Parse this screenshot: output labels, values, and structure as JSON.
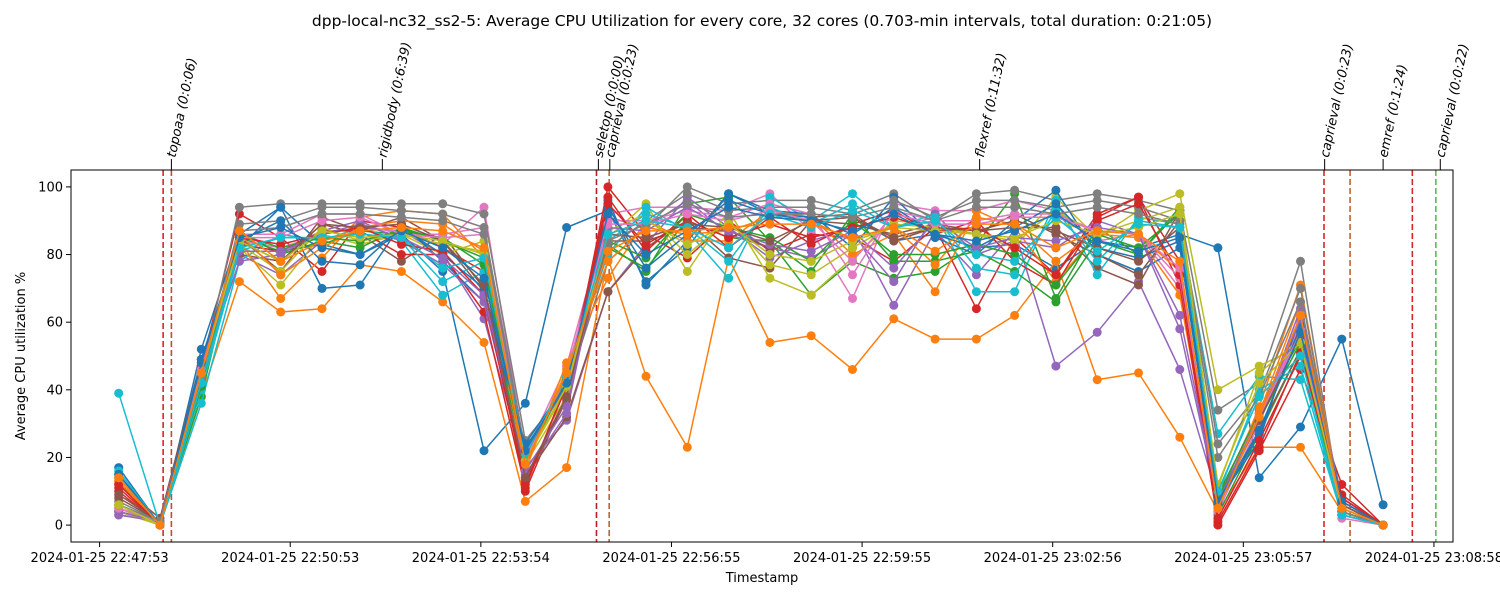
{
  "chart_data": {
    "type": "line",
    "title": "dpp-local-nc32_ss2-5: Average CPU Utilization for every core, 32 cores (0.703-min intervals, total duration: 0:21:05)",
    "xlabel": "Timestamp",
    "ylabel": "Average CPU utilization %",
    "ylim": [
      -5,
      105
    ],
    "xlim": [
      -0.45,
      21.3
    ],
    "x_units": "minutes from 2024-01-25 22:47:53",
    "x_ticks": [
      {
        "x": 0,
        "label": "2024-01-25 22:47:53"
      },
      {
        "x": 3,
        "label": "2024-01-25 22:50:53"
      },
      {
        "x": 6,
        "label": "2024-01-25 22:53:54"
      },
      {
        "x": 9,
        "label": "2024-01-25 22:56:55"
      },
      {
        "x": 12,
        "label": "2024-01-25 22:59:55"
      },
      {
        "x": 15,
        "label": "2024-01-25 23:02:56"
      },
      {
        "x": 18,
        "label": "2024-01-25 23:05:57"
      },
      {
        "x": 21,
        "label": "2024-01-25 23:08:58"
      }
    ],
    "y_ticks": [
      0,
      20,
      40,
      60,
      80,
      100
    ],
    "grid": false,
    "sample_x": [
      0.3,
      0.95,
      1.6,
      2.2,
      2.85,
      3.5,
      4.1,
      4.75,
      5.4,
      6.05,
      6.7,
      7.35,
      8.0,
      8.6,
      9.25,
      9.9,
      10.55,
      11.2,
      11.85,
      12.5,
      13.15,
      13.8,
      14.4,
      15.05,
      15.7,
      16.35,
      17.0,
      17.6,
      18.25,
      18.9,
      19.55,
      20.2
    ],
    "events": [
      {
        "label": "topoaa (0:0:06)",
        "label_x": 1.13,
        "lines": [
          {
            "x": 1.0,
            "color": "#d62728"
          },
          {
            "x": 1.13,
            "color": "#c44e2a"
          }
        ]
      },
      {
        "label": "rigidbody (0:6:39)",
        "label_x": 4.45,
        "lines": []
      },
      {
        "label": "seletop (0:0:00)",
        "label_x": 7.85,
        "lines": [
          {
            "x": 7.82,
            "color": "#b22222"
          }
        ]
      },
      {
        "label": "caprieval (0:0:23)",
        "label_x": 8.03,
        "lines": [
          {
            "x": 8.02,
            "color": "#c0632a"
          }
        ]
      },
      {
        "label": "flexref (0:11:32)",
        "label_x": 13.85,
        "lines": []
      },
      {
        "label": "caprieval (0:0:23)",
        "label_x": 19.28,
        "lines": [
          {
            "x": 19.27,
            "color": "#d62728"
          },
          {
            "x": 19.68,
            "color": "#c0632a"
          }
        ]
      },
      {
        "label": "emref (0:1:24)",
        "label_x": 20.2,
        "lines": [
          {
            "x": 20.66,
            "color": "#d62728"
          }
        ]
      },
      {
        "label": "caprieval (0:0:22)",
        "label_x": 21.1,
        "lines": [
          {
            "x": 21.03,
            "color": "#5cb85c"
          }
        ]
      }
    ],
    "palette": [
      "#1f77b4",
      "#ff7f0e",
      "#2ca02c",
      "#d62728",
      "#9467bd",
      "#8c564b",
      "#e377c2",
      "#7f7f7f",
      "#bcbd22",
      "#17becf"
    ],
    "series": [
      {
        "color": "#1f77b4",
        "values": [
          17,
          0,
          52,
          86,
          94,
          83,
          80,
          86,
          75,
          22,
          36,
          88,
          93,
          72,
          82,
          98,
          92,
          90,
          91,
          84,
          86,
          82,
          83,
          76,
          84,
          82,
          86,
          82,
          14,
          29,
          55,
          6
        ]
      },
      {
        "color": "#ff7f0e",
        "values": [
          15,
          0,
          38,
          72,
          63,
          64,
          77,
          75,
          66,
          54,
          7,
          17,
          79,
          44,
          23,
          79,
          54,
          56,
          46,
          61,
          55,
          55,
          62,
          78,
          43,
          45,
          26,
          4,
          23,
          23,
          4,
          0
        ]
      },
      {
        "color": "#2ca02c",
        "values": [
          4,
          1,
          38,
          85,
          81,
          83,
          87,
          86,
          86,
          70,
          18,
          44,
          83,
          75,
          95,
          97,
          84,
          68,
          78,
          73,
          75,
          83,
          98,
          67,
          88,
          80,
          93,
          3,
          27,
          52,
          3,
          0
        ]
      },
      {
        "color": "#d62728",
        "values": [
          10,
          0,
          47,
          92,
          85,
          75,
          90,
          88,
          82,
          75,
          10,
          39,
          100,
          86,
          79,
          90,
          81,
          86,
          85,
          78,
          88,
          64,
          85,
          74,
          92,
          97,
          78,
          0,
          22,
          46,
          12,
          0
        ]
      },
      {
        "color": "#9467bd",
        "values": [
          3,
          1,
          49,
          80,
          74,
          84,
          88,
          87,
          80,
          61,
          17,
          31,
          69,
          83,
          97,
          88,
          79,
          84,
          88,
          65,
          87,
          74,
          87,
          47,
          57,
          72,
          46,
          8,
          34,
          58,
          6,
          0
        ]
      },
      {
        "color": "#8c564b",
        "values": [
          12,
          2,
          49,
          80,
          78,
          89,
          86,
          78,
          86,
          70,
          14,
          32,
          69,
          82,
          90,
          79,
          76,
          90,
          89,
          86,
          89,
          87,
          88,
          88,
          76,
          71,
          93,
          6,
          28,
          52,
          8,
          0
        ]
      },
      {
        "color": "#e377c2",
        "values": [
          3,
          1,
          47,
          84,
          82,
          86,
          89,
          86,
          83,
          94,
          21,
          47,
          92,
          94,
          94,
          93,
          98,
          87,
          67,
          95,
          93,
          93,
          96,
          93,
          84,
          86,
          70,
          4,
          30,
          60,
          2,
          0
        ]
      },
      {
        "color": "#7f7f7f",
        "values": [
          7,
          1,
          45,
          94,
          95,
          95,
          95,
          95,
          95,
          92,
          25,
          40,
          78,
          88,
          100,
          95,
          96,
          96,
          93,
          98,
          90,
          98,
          99,
          96,
          98,
          96,
          93,
          34,
          42,
          78,
          3,
          0
        ]
      },
      {
        "color": "#bcbd22",
        "values": [
          4,
          0,
          44,
          82,
          71,
          86,
          83,
          86,
          80,
          84,
          18,
          38,
          85,
          95,
          75,
          93,
          73,
          68,
          79,
          90,
          89,
          86,
          82,
          97,
          85,
          93,
          98,
          40,
          47,
          53,
          5,
          0
        ]
      },
      {
        "color": "#17becf",
        "values": [
          39,
          0,
          36,
          78,
          86,
          84,
          88,
          84,
          68,
          75,
          20,
          45,
          80,
          94,
          87,
          73,
          97,
          90,
          98,
          88,
          92,
          69,
          69,
          96,
          74,
          91,
          89,
          27,
          44,
          43,
          3,
          0
        ]
      },
      {
        "color": "#1f77b4",
        "values": [
          14,
          0,
          48,
          82,
          94,
          70,
          71,
          89,
          78,
          66,
          24,
          42,
          96,
          71,
          84,
          98,
          93,
          92,
          82,
          97,
          85,
          80,
          90,
          99,
          80,
          75,
          82,
          7,
          25,
          62,
          8,
          0
        ]
      },
      {
        "color": "#ff7f0e",
        "values": [
          13,
          0,
          42,
          84,
          67,
          79,
          91,
          93,
          92,
          79,
          16,
          48,
          73,
          90,
          84,
          84,
          93,
          91,
          80,
          86,
          69,
          93,
          88,
          72,
          86,
          85,
          68,
          5,
          35,
          71,
          5,
          0
        ]
      },
      {
        "color": "#2ca02c",
        "values": [
          5,
          1,
          40,
          87,
          80,
          84,
          82,
          88,
          84,
          79,
          19,
          43,
          82,
          76,
          90,
          85,
          84,
          75,
          92,
          78,
          78,
          81,
          75,
          66,
          84,
          80,
          94,
          9,
          33,
          55,
          4,
          0
        ]
      },
      {
        "color": "#d62728",
        "values": [
          11,
          0,
          47,
          83,
          81,
          87,
          87,
          80,
          80,
          63,
          11,
          42,
          97,
          81,
          92,
          82,
          91,
          83,
          89,
          93,
          86,
          90,
          78,
          71,
          91,
          97,
          71,
          1,
          23,
          51,
          9,
          0
        ]
      },
      {
        "color": "#9467bd",
        "values": [
          3,
          1,
          45,
          78,
          80,
          87,
          90,
          84,
          77,
          66,
          15,
          33,
          91,
          88,
          96,
          86,
          82,
          79,
          86,
          72,
          92,
          80,
          84,
          82,
          90,
          86,
          58,
          7,
          31,
          64,
          7,
          0
        ]
      },
      {
        "color": "#8c564b",
        "values": [
          9,
          1,
          46,
          85,
          75,
          91,
          87,
          91,
          84,
          69,
          13,
          37,
          84,
          84,
          88,
          87,
          82,
          91,
          92,
          84,
          88,
          86,
          92,
          86,
          80,
          74,
          90,
          6,
          32,
          57,
          6,
          0
        ]
      },
      {
        "color": "#e377c2",
        "values": [
          4,
          1,
          46,
          86,
          86,
          92,
          92,
          86,
          86,
          88,
          19,
          45,
          90,
          90,
          93,
          91,
          95,
          92,
          74,
          93,
          90,
          90,
          92,
          92,
          87,
          86,
          73,
          5,
          33,
          58,
          3,
          0
        ]
      },
      {
        "color": "#7f7f7f",
        "values": [
          6,
          1,
          43,
          89,
          90,
          94,
          94,
          93,
          92,
          88,
          22,
          41,
          82,
          90,
          98,
          93,
          94,
          94,
          92,
          96,
          91,
          96,
          96,
          94,
          96,
          94,
          90,
          24,
          39,
          70,
          4,
          0
        ]
      },
      {
        "color": "#bcbd22",
        "values": [
          5,
          0,
          45,
          83,
          75,
          88,
          84,
          86,
          83,
          81,
          19,
          40,
          87,
          92,
          80,
          90,
          77,
          74,
          82,
          89,
          88,
          86,
          84,
          93,
          86,
          90,
          94,
          11,
          45,
          55,
          5,
          0
        ]
      },
      {
        "color": "#17becf",
        "values": [
          16,
          0,
          40,
          81,
          85,
          85,
          86,
          85,
          72,
          78,
          21,
          44,
          84,
          92,
          88,
          78,
          94,
          89,
          95,
          88,
          91,
          76,
          74,
          93,
          78,
          90,
          88,
          9,
          40,
          47,
          3,
          0
        ]
      },
      {
        "color": "#1f77b4",
        "values": [
          15,
          0,
          49,
          84,
          90,
          78,
          77,
          88,
          80,
          70,
          23,
          41,
          94,
          76,
          86,
          96,
          92,
          91,
          86,
          94,
          86,
          82,
          88,
          95,
          82,
          79,
          84,
          6,
          27,
          59,
          7,
          0
        ]
      },
      {
        "color": "#ff7f0e",
        "values": [
          13,
          0,
          44,
          86,
          74,
          82,
          88,
          90,
          89,
          81,
          17,
          46,
          78,
          88,
          86,
          87,
          91,
          90,
          84,
          88,
          77,
          91,
          89,
          78,
          87,
          86,
          75,
          5,
          33,
          66,
          5,
          0
        ]
      },
      {
        "color": "#2ca02c",
        "values": [
          6,
          1,
          41,
          86,
          82,
          85,
          84,
          87,
          85,
          77,
          19,
          43,
          84,
          79,
          92,
          88,
          85,
          78,
          90,
          80,
          80,
          83,
          80,
          71,
          86,
          82,
          92,
          8,
          31,
          54,
          4,
          0
        ]
      },
      {
        "color": "#d62728",
        "values": [
          12,
          0,
          46,
          85,
          83,
          86,
          88,
          83,
          81,
          68,
          12,
          41,
          95,
          83,
          90,
          85,
          89,
          85,
          88,
          91,
          87,
          88,
          82,
          74,
          90,
          95,
          74,
          2,
          25,
          50,
          8,
          0
        ]
      },
      {
        "color": "#9467bd",
        "values": [
          4,
          1,
          46,
          81,
          81,
          86,
          89,
          85,
          79,
          68,
          16,
          35,
          88,
          87,
          94,
          87,
          83,
          81,
          87,
          76,
          90,
          82,
          85,
          84,
          88,
          86,
          62,
          7,
          32,
          61,
          6,
          0
        ]
      },
      {
        "color": "#8c564b",
        "values": [
          8,
          1,
          46,
          84,
          78,
          89,
          88,
          89,
          84,
          71,
          14,
          38,
          86,
          85,
          89,
          88,
          84,
          90,
          91,
          85,
          88,
          87,
          90,
          87,
          82,
          78,
          88,
          6,
          31,
          56,
          6,
          0
        ]
      },
      {
        "color": "#e377c2",
        "values": [
          5,
          1,
          46,
          85,
          85,
          90,
          91,
          86,
          85,
          86,
          19,
          44,
          89,
          89,
          92,
          90,
          93,
          90,
          78,
          92,
          89,
          89,
          91,
          91,
          87,
          86,
          76,
          5,
          32,
          57,
          3,
          0
        ]
      },
      {
        "color": "#7f7f7f",
        "values": [
          6,
          1,
          44,
          87,
          88,
          92,
          92,
          91,
          90,
          86,
          21,
          42,
          84,
          89,
          95,
          91,
          92,
          92,
          91,
          94,
          90,
          94,
          94,
          92,
          94,
          92,
          89,
          20,
          38,
          66,
          4,
          0
        ]
      },
      {
        "color": "#bcbd22",
        "values": [
          6,
          0,
          45,
          84,
          78,
          87,
          85,
          86,
          84,
          80,
          19,
          41,
          86,
          90,
          83,
          89,
          80,
          78,
          84,
          88,
          87,
          86,
          85,
          90,
          86,
          88,
          92,
          12,
          42,
          54,
          5,
          0
        ]
      },
      {
        "color": "#17becf",
        "values": [
          14,
          0,
          42,
          82,
          85,
          85,
          86,
          85,
          76,
          79,
          21,
          44,
          86,
          90,
          88,
          82,
          92,
          88,
          93,
          88,
          90,
          80,
          78,
          91,
          81,
          89,
          88,
          10,
          38,
          50,
          3,
          0
        ]
      },
      {
        "color": "#1f77b4",
        "values": [
          15,
          0,
          48,
          85,
          88,
          82,
          80,
          87,
          82,
          73,
          22,
          42,
          92,
          80,
          87,
          94,
          91,
          90,
          87,
          92,
          86,
          84,
          87,
          92,
          84,
          81,
          85,
          7,
          28,
          57,
          7,
          0
        ]
      },
      {
        "color": "#ff7f0e",
        "values": [
          14,
          0,
          45,
          87,
          78,
          84,
          87,
          88,
          87,
          82,
          18,
          45,
          81,
          87,
          87,
          88,
          89,
          89,
          85,
          88,
          81,
          89,
          89,
          82,
          87,
          86,
          78,
          5,
          32,
          62,
          5,
          0
        ]
      }
    ]
  }
}
